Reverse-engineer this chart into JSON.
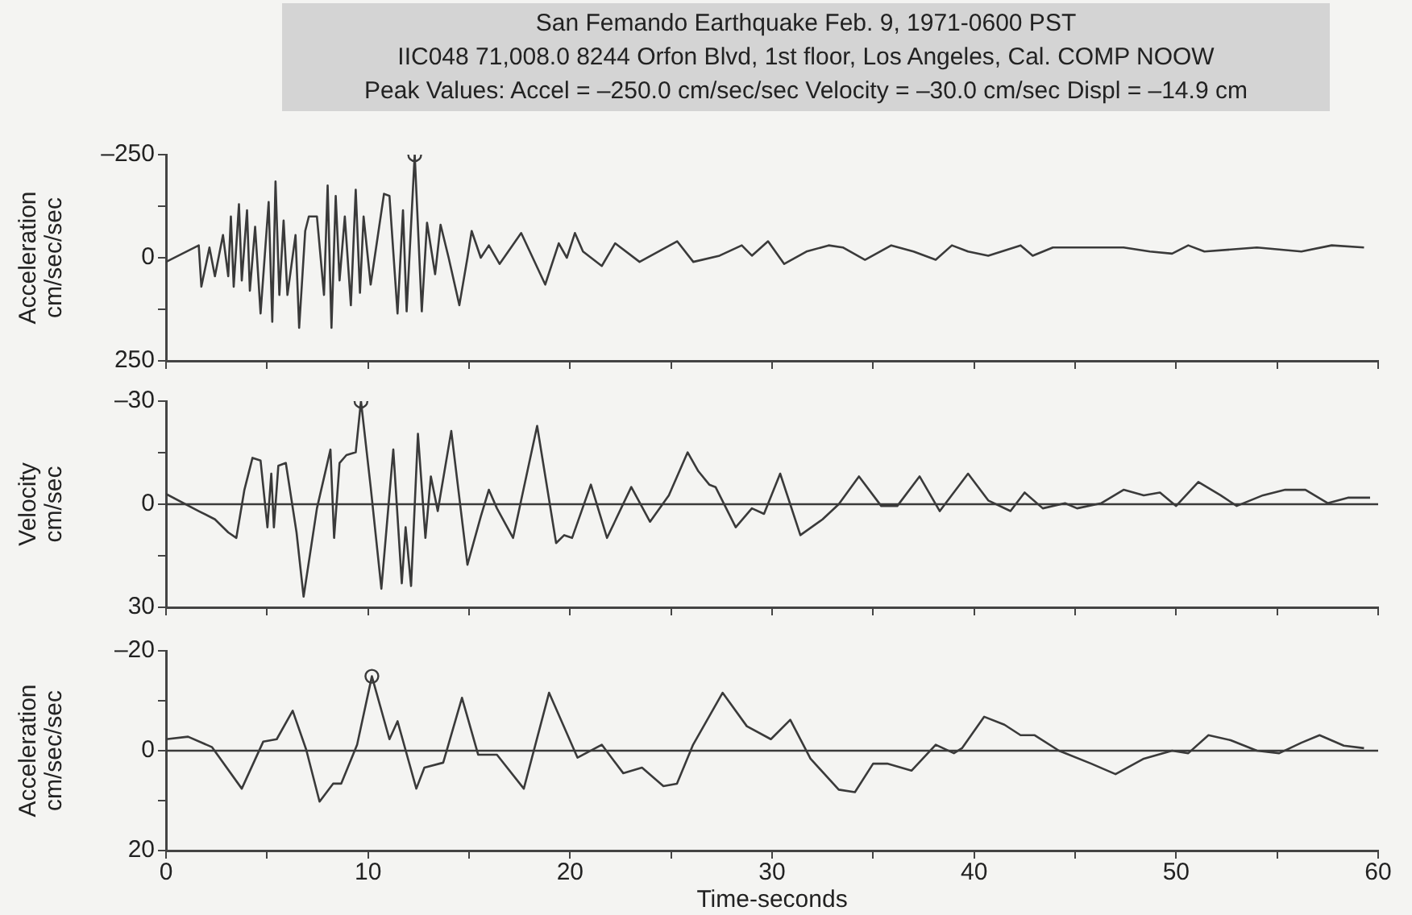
{
  "chart_data": [
    {
      "type": "line",
      "title": "San Femando Earthquake Feb. 9, 1971-0600 PST",
      "subtitle": "IIC048 71,008.0 8244 Orfon Blvd, 1st floor, Los Angeles, Cal. COMP NOOW",
      "annotations": [
        "Peak Values: Accel = –250.0 cm/sec/sec Velocity = –30.0 cm/sec Displ = –14.9 cm"
      ],
      "ylabel": "Acceleration cm/sec/sec",
      "xlim": [
        0,
        60
      ],
      "xticks": [
        {
          "value": 0,
          "label": null
        },
        {
          "value": 5,
          "label": null
        },
        {
          "value": 10,
          "label": null
        },
        {
          "value": 15,
          "label": null
        },
        {
          "value": 20,
          "label": null
        },
        {
          "value": 25,
          "label": null
        },
        {
          "value": 30,
          "label": null
        },
        {
          "value": 35,
          "label": null
        },
        {
          "value": 40,
          "label": null
        },
        {
          "value": 45,
          "label": null
        },
        {
          "value": 50,
          "label": null
        },
        {
          "value": 55,
          "label": null
        },
        {
          "value": 60,
          "label": null
        }
      ],
      "ylim": [
        250,
        -250
      ],
      "yticks": [
        {
          "value": -250,
          "label": "–250"
        },
        {
          "value": -125,
          "label": null
        },
        0,
        {
          "value": 125,
          "label": null
        },
        250
      ],
      "tick_labels": "y",
      "series": [
        {
          "type": "line",
          "color": "#3a3a3a",
          "marker": "none",
          "x": [
            0,
            1.62,
            1.75,
            2.15,
            2.42,
            2.82,
            3.08,
            3.21,
            3.35,
            3.61,
            3.75,
            4.01,
            4.15,
            4.41,
            4.68,
            5.08,
            5.26,
            5.42,
            5.61,
            5.82,
            6.01,
            6.41,
            6.59,
            6.89,
            7.07,
            7.47,
            7.82,
            8.0,
            8.19,
            8.4,
            8.59,
            8.85,
            9.15,
            9.39,
            9.6,
            9.78,
            10.13,
            10.79,
            11.06,
            11.46,
            11.73,
            11.91,
            12.31,
            12.66,
            12.92,
            13.32,
            13.59,
            13.99,
            14.52,
            14.92,
            15.13,
            15.58,
            15.98,
            16.51,
            17.58,
            18.77,
            19.44,
            19.84,
            20.24,
            20.64,
            21.57,
            22.23,
            23.44,
            25.3,
            26.1,
            27.4,
            28.5,
            29.0,
            29.8,
            30.6,
            31.7,
            32.8,
            33.5,
            34.6,
            35.9,
            37.0,
            38.1,
            38.9,
            39.7,
            40.7,
            42.3,
            42.9,
            43.9,
            45.2,
            47.4,
            48.7,
            49.8,
            50.6,
            51.4,
            54.0,
            56.2,
            57.7,
            59.3
          ],
          "values": [
            10,
            -30,
            70,
            -25,
            45,
            -55,
            45,
            -100,
            70,
            -130,
            55,
            -115,
            80,
            -75,
            135,
            -135,
            155,
            -185,
            90,
            -90,
            90,
            -55,
            170,
            -65,
            -100,
            -100,
            90,
            -175,
            170,
            -150,
            55,
            -100,
            115,
            -165,
            85,
            -100,
            65,
            -155,
            -150,
            135,
            -115,
            130,
            -250,
            130,
            -85,
            40,
            -80,
            0,
            115,
            0,
            -65,
            0,
            -30,
            15,
            -60,
            65,
            -35,
            0,
            -60,
            -15,
            20,
            -35,
            10,
            -40,
            10,
            -5,
            -30,
            -5,
            -40,
            15,
            -15,
            -30,
            -25,
            5,
            -30,
            -15,
            5,
            -30,
            -15,
            -5,
            -30,
            -5,
            -25,
            -25,
            -25,
            -15,
            -10,
            -30,
            -15,
            -25,
            -15,
            -30,
            -25
          ]
        },
        {
          "type": "scatter",
          "color": "#3a3a3a",
          "marker": "circle",
          "x": [
            12.31
          ],
          "values": [
            -250
          ]
        }
      ]
    },
    {
      "type": "line",
      "ylabel": "Velocity cm/sec",
      "xlim": [
        0,
        60
      ],
      "xticks": [
        {
          "value": 0,
          "label": null
        },
        {
          "value": 5,
          "label": null
        },
        {
          "value": 10,
          "label": null
        },
        {
          "value": 15,
          "label": null
        },
        {
          "value": 20,
          "label": null
        },
        {
          "value": 25,
          "label": null
        },
        {
          "value": 30,
          "label": null
        },
        {
          "value": 35,
          "label": null
        },
        {
          "value": 40,
          "label": null
        },
        {
          "value": 45,
          "label": null
        },
        {
          "value": 50,
          "label": null
        },
        {
          "value": 55,
          "label": null
        },
        {
          "value": 60,
          "label": null
        }
      ],
      "ylim": [
        30,
        -30
      ],
      "yticks": [
        {
          "value": -30,
          "label": "–30"
        },
        {
          "value": -15,
          "label": null
        },
        0,
        {
          "value": 15,
          "label": null
        },
        30
      ],
      "tick_labels": "y",
      "ref_lines": [
        {
          "axis": "y",
          "value": 0,
          "color": "#3a3a3a"
        }
      ],
      "series": [
        {
          "type": "line",
          "color": "#3a3a3a",
          "marker": "none",
          "x": [
            0,
            1.62,
            2.42,
            3.08,
            3.48,
            3.88,
            4.28,
            4.68,
            5.02,
            5.21,
            5.34,
            5.56,
            5.93,
            6.46,
            6.81,
            7.47,
            8.14,
            8.32,
            8.59,
            8.93,
            9.39,
            9.65,
            10.13,
            10.66,
            11.25,
            11.67,
            11.86,
            12.13,
            12.47,
            12.84,
            13.11,
            13.45,
            14.12,
            14.92,
            15.58,
            15.98,
            16.38,
            17.18,
            18.37,
            19.31,
            19.71,
            20.1,
            21.03,
            21.83,
            23.03,
            23.96,
            24.89,
            25.82,
            26.35,
            26.89,
            27.2,
            28.2,
            29.0,
            29.6,
            30.4,
            31.4,
            32.5,
            33.3,
            34.3,
            35.4,
            36.2,
            37.3,
            38.3,
            39.7,
            40.7,
            41.8,
            42.5,
            43.4,
            44.5,
            45.1,
            46.3,
            47.4,
            48.4,
            49.2,
            50.0,
            51.1,
            52.2,
            53.0,
            54.3,
            55.4,
            56.4,
            57.5,
            58.5,
            59.6
          ],
          "values": [
            -3,
            2,
            4.4,
            8.2,
            9.8,
            -4.2,
            -13.5,
            -12.7,
            6.7,
            -8.9,
            6.7,
            -11.2,
            -12,
            8.2,
            26.9,
            1.2,
            -15.9,
            9.8,
            -12,
            -14.3,
            -15.1,
            -30,
            -5,
            24.6,
            -15.9,
            23,
            6.7,
            23.8,
            -20.5,
            9.8,
            -8.1,
            2,
            -21.3,
            17.6,
            3.6,
            -4.2,
            1.2,
            9.8,
            -22.8,
            11.3,
            9,
            9.8,
            -5.7,
            9.8,
            -5,
            5.1,
            -2.6,
            -15.1,
            -9.6,
            -5.7,
            -5,
            6.7,
            1.2,
            2.8,
            -8.9,
            9,
            4.4,
            0,
            -8.1,
            0.5,
            0.5,
            -8.1,
            2,
            -8.9,
            -1.1,
            2,
            -3.4,
            1.2,
            -0.3,
            1.2,
            -0.3,
            -4.2,
            -2.6,
            -3.4,
            0.5,
            -6.5,
            -2.6,
            0.5,
            -2.6,
            -4.2,
            -4.2,
            -0.3,
            -1.9,
            -1.9
          ]
        },
        {
          "type": "scatter",
          "color": "#3a3a3a",
          "marker": "circle",
          "x": [
            9.65
          ],
          "values": [
            -30
          ]
        }
      ]
    },
    {
      "type": "line",
      "ylabel": "Acceleration cm/sec/sec",
      "xlabel": "Time-seconds",
      "xlim": [
        0,
        60
      ],
      "xticks": [
        0,
        {
          "value": 5,
          "label": null
        },
        10,
        {
          "value": 15,
          "label": null
        },
        20,
        {
          "value": 25,
          "label": null
        },
        30,
        {
          "value": 35,
          "label": null
        },
        40,
        {
          "value": 45,
          "label": null
        },
        50,
        {
          "value": 55,
          "label": null
        },
        60
      ],
      "ylim": [
        20,
        -20
      ],
      "yticks": [
        {
          "value": -20,
          "label": "–20"
        },
        {
          "value": -10,
          "label": null
        },
        0,
        {
          "value": 10,
          "label": null
        },
        20
      ],
      "ref_lines": [
        {
          "axis": "y",
          "value": 0,
          "color": "#3a3a3a"
        }
      ],
      "series": [
        {
          "type": "line",
          "color": "#3a3a3a",
          "marker": "none",
          "x": [
            0,
            1.09,
            2.28,
            3.75,
            4.81,
            5.48,
            6.27,
            6.94,
            7.6,
            8.27,
            8.67,
            9.46,
            10.19,
            11.06,
            11.46,
            12.39,
            12.79,
            13.72,
            14.65,
            15.45,
            16.38,
            17.71,
            18.96,
            20.37,
            21.57,
            22.63,
            23.56,
            24.62,
            25.29,
            26.09,
            27.55,
            28.75,
            29.94,
            30.9,
            31.9,
            33.3,
            34.1,
            35.0,
            35.7,
            36.9,
            38.1,
            39.0,
            39.4,
            40.5,
            41.5,
            42.3,
            43.0,
            44.2,
            45.8,
            47.0,
            48.4,
            49.8,
            50.6,
            51.6,
            52.7,
            54.0,
            55.1,
            56.2,
            57.1,
            58.3,
            59.3
          ],
          "values": [
            -2.3,
            -2.8,
            -0.7,
            7.6,
            -1.8,
            -2.3,
            -8,
            -0.2,
            10.2,
            6.6,
            6.6,
            -1.2,
            -14.9,
            -2.3,
            -5.9,
            7.6,
            3.4,
            2.4,
            -10.6,
            0.8,
            0.8,
            7.6,
            -11.6,
            1.4,
            -1.2,
            4.5,
            3.4,
            7.1,
            6.6,
            -1.2,
            -11.6,
            -4.9,
            -2.3,
            -6.2,
            1.6,
            7.8,
            8.3,
            2.6,
            2.6,
            4,
            -1.2,
            0.5,
            -0.5,
            -6.8,
            -5.2,
            -3.1,
            -3.1,
            0,
            2.6,
            4.7,
            1.6,
            0,
            0.5,
            -3.1,
            -2.1,
            0,
            0.5,
            -1.6,
            -3.1,
            -1,
            -0.5
          ]
        },
        {
          "type": "scatter",
          "color": "#3a3a3a",
          "marker": "circle",
          "x": [
            10.19
          ],
          "values": [
            -14.9
          ]
        }
      ]
    }
  ]
}
